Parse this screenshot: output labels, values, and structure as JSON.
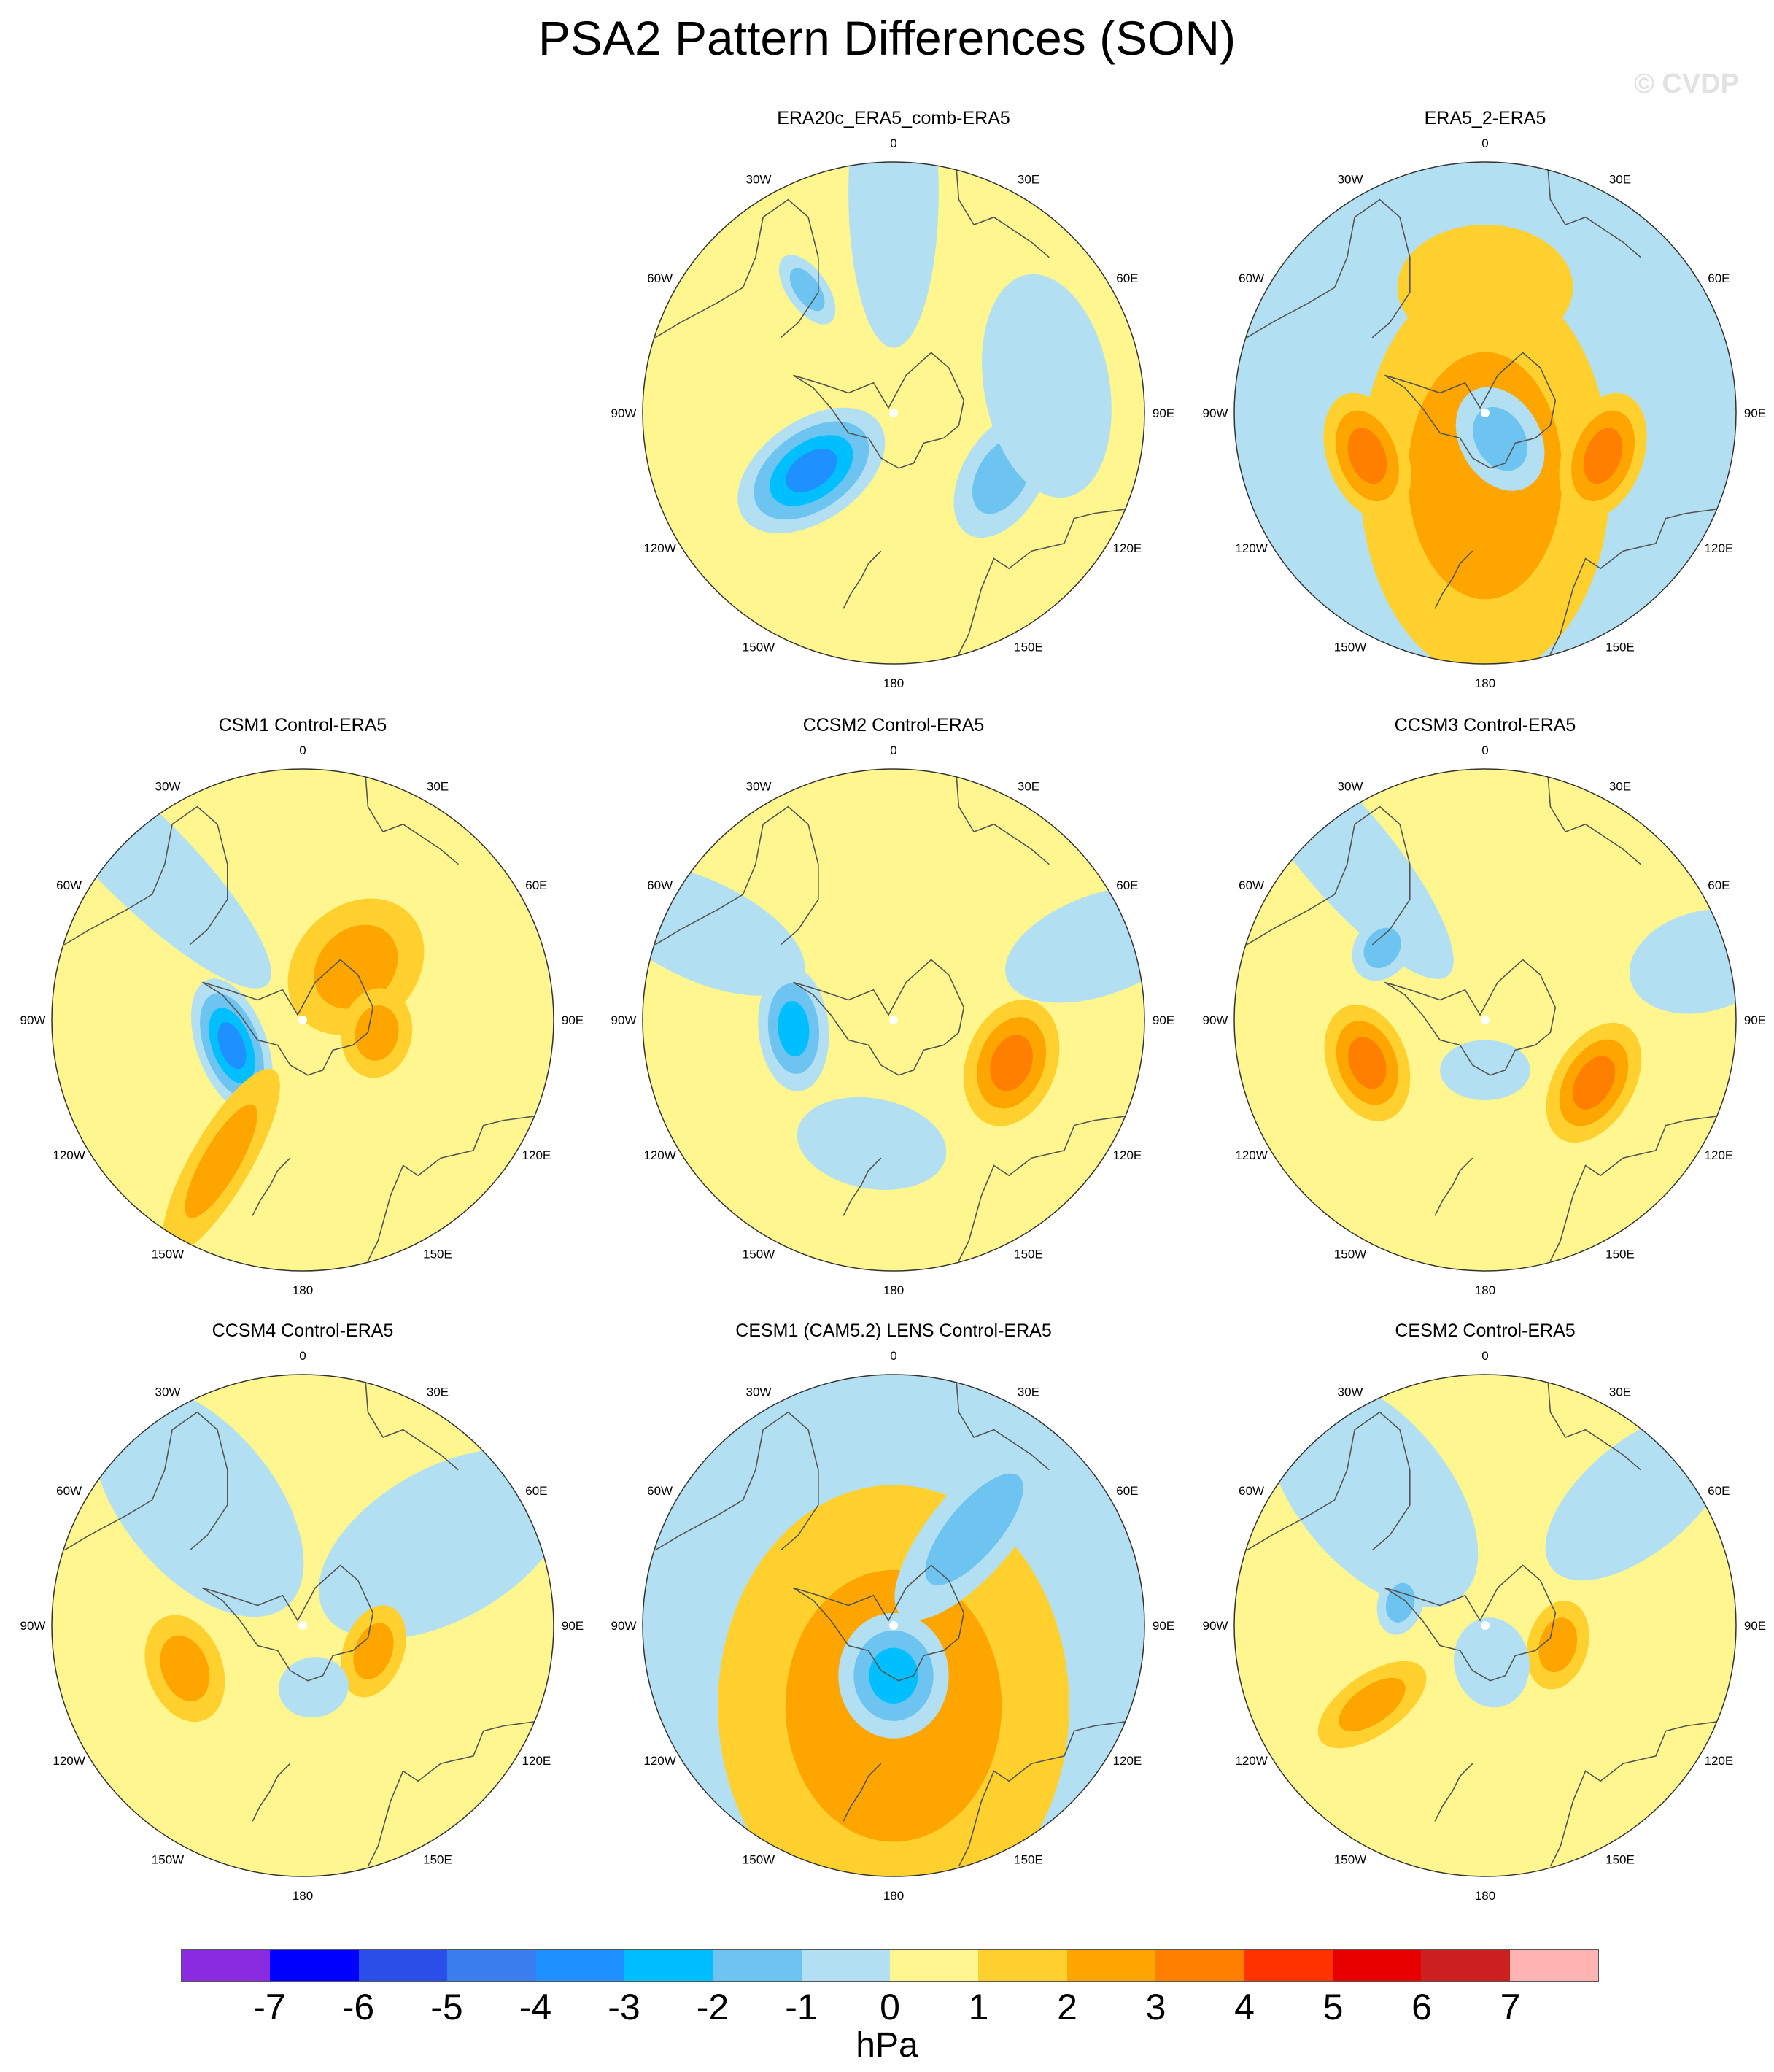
{
  "title": "PSA2 Pattern Differences (SON)",
  "watermark": "© CVDP",
  "lon_labels": [
    "0",
    "30E",
    "60E",
    "90E",
    "120E",
    "150E",
    "180",
    "150W",
    "120W",
    "90W",
    "60W",
    "30W"
  ],
  "panels": [
    {
      "title": "ERA20c_ERA5_comb-ERA5",
      "background_level": 0,
      "anomalies": [
        {
          "lon": -125,
          "r": 0.4,
          "level": -4,
          "sx": 0.33,
          "sy": 0.2
        },
        {
          "lon": 120,
          "r": 0.5,
          "level": -2,
          "sx": 0.16,
          "sy": 0.27
        },
        {
          "lon": -35,
          "r": 0.6,
          "level": -2,
          "sx": 0.16,
          "sy": 0.08
        },
        {
          "lon": 0,
          "r": 0.88,
          "level": -1,
          "sx": 0.62,
          "sy": 0.18
        },
        {
          "lon": 80,
          "r": 0.62,
          "level": -1,
          "sx": 0.25,
          "sy": 0.45
        }
      ]
    },
    {
      "title": "ERA5_2-ERA5",
      "background_level": -1,
      "anomalies": [
        {
          "lon": 180,
          "r": 0.25,
          "level": 2,
          "sx": 0.8,
          "sy": 0.5
        },
        {
          "lon": 0,
          "r": 0.5,
          "level": 1,
          "sx": 0.25,
          "sy": 0.35
        },
        {
          "lon": -110,
          "r": 0.5,
          "level": 3,
          "sx": 0.16,
          "sy": 0.26
        },
        {
          "lon": 110,
          "r": 0.5,
          "level": 3,
          "sx": 0.16,
          "sy": 0.26
        },
        {
          "lon": 150,
          "r": 0.12,
          "level": -2,
          "sx": 0.22,
          "sy": 0.16
        }
      ]
    },
    {
      "title": "CSM1 Control-ERA5",
      "background_level": 0,
      "anomalies": [
        {
          "lon": -45,
          "r": 0.92,
          "level": -1,
          "sx": 0.72,
          "sy": 0.18
        },
        {
          "lon": -110,
          "r": 0.3,
          "level": -4,
          "sx": 0.14,
          "sy": 0.28
        },
        {
          "lon": -150,
          "r": 0.65,
          "level": 2,
          "sx": 0.42,
          "sy": 0.12
        },
        {
          "lon": 45,
          "r": 0.3,
          "level": 2,
          "sx": 0.3,
          "sy": 0.24
        },
        {
          "lon": 100,
          "r": 0.3,
          "level": 2,
          "sx": 0.14,
          "sy": 0.18
        }
      ]
    },
    {
      "title": "CCSM2 Control-ERA5",
      "background_level": 0,
      "anomalies": [
        {
          "lon": -65,
          "r": 0.85,
          "level": -1,
          "sx": 0.45,
          "sy": 0.2
        },
        {
          "lon": 70,
          "r": 0.88,
          "level": -1,
          "sx": 0.4,
          "sy": 0.2
        },
        {
          "lon": -95,
          "r": 0.4,
          "level": -3,
          "sx": 0.14,
          "sy": 0.25
        },
        {
          "lon": -170,
          "r": 0.5,
          "level": -1,
          "sx": 0.18,
          "sy": 0.3
        },
        {
          "lon": 110,
          "r": 0.5,
          "level": 3,
          "sx": 0.18,
          "sy": 0.26
        }
      ]
    },
    {
      "title": "CCSM3 Control-ERA5",
      "background_level": 0,
      "anomalies": [
        {
          "lon": -40,
          "r": 0.88,
          "level": -1,
          "sx": 0.65,
          "sy": 0.18
        },
        {
          "lon": -55,
          "r": 0.5,
          "level": -2,
          "sx": 0.11,
          "sy": 0.14
        },
        {
          "lon": 75,
          "r": 0.9,
          "level": -1,
          "sx": 0.3,
          "sy": 0.2
        },
        {
          "lon": -110,
          "r": 0.5,
          "level": 3,
          "sx": 0.16,
          "sy": 0.24
        },
        {
          "lon": 120,
          "r": 0.5,
          "level": 3,
          "sx": 0.16,
          "sy": 0.26
        },
        {
          "lon": 180,
          "r": 0.2,
          "level": -1,
          "sx": 0.12,
          "sy": 0.18
        }
      ]
    },
    {
      "title": "CCSM4 Control-ERA5",
      "background_level": 0,
      "anomalies": [
        {
          "lon": -40,
          "r": 0.65,
          "level": -1,
          "sx": 0.55,
          "sy": 0.3
        },
        {
          "lon": 60,
          "r": 0.65,
          "level": -1,
          "sx": 0.55,
          "sy": 0.3
        },
        {
          "lon": -110,
          "r": 0.5,
          "level": 2,
          "sx": 0.15,
          "sy": 0.22
        },
        {
          "lon": 110,
          "r": 0.3,
          "level": 2,
          "sx": 0.12,
          "sy": 0.19
        },
        {
          "lon": 170,
          "r": 0.25,
          "level": -1,
          "sx": 0.12,
          "sy": 0.14
        }
      ]
    },
    {
      "title": "CESM1 (CAM5.2) LENS Control-ERA5",
      "background_level": -1,
      "anomalies": [
        {
          "lon": 180,
          "r": 0.32,
          "level": 3,
          "sx": 0.8,
          "sy": 0.62
        },
        {
          "lon": 180,
          "r": 0.32,
          "level": 2,
          "sx": 0.88,
          "sy": 0.7
        },
        {
          "lon": 180,
          "r": 0.2,
          "level": -3,
          "sx": 0.25,
          "sy": 0.22
        },
        {
          "lon": 40,
          "r": 0.5,
          "level": -2,
          "sx": 0.45,
          "sy": 0.17
        }
      ]
    },
    {
      "title": "CESM2 Control-ERA5",
      "background_level": 0,
      "anomalies": [
        {
          "lon": -40,
          "r": 0.7,
          "level": -1,
          "sx": 0.55,
          "sy": 0.3
        },
        {
          "lon": 50,
          "r": 0.8,
          "level": -1,
          "sx": 0.45,
          "sy": 0.22
        },
        {
          "lon": -75,
          "r": 0.35,
          "level": -2,
          "sx": 0.09,
          "sy": 0.13
        },
        {
          "lon": -125,
          "r": 0.55,
          "level": 2,
          "sx": 0.25,
          "sy": 0.12
        },
        {
          "lon": 105,
          "r": 0.3,
          "level": 2,
          "sx": 0.12,
          "sy": 0.18
        },
        {
          "lon": 170,
          "r": 0.15,
          "level": -1,
          "sx": 0.18,
          "sy": 0.15
        }
      ]
    }
  ],
  "colorbar": {
    "colors": [
      "#8a2be2",
      "#0000ff",
      "#2b4de8",
      "#3a7ff0",
      "#1e90ff",
      "#00bfff",
      "#6ec4f0",
      "#b3dff2",
      "#fff68f",
      "#ffd02e",
      "#ffa500",
      "#ff7f00",
      "#ff3300",
      "#e60000",
      "#cc1f1f",
      "#ffb3b3"
    ],
    "labels": [
      "-7",
      "-6",
      "-5",
      "-4",
      "-3",
      "-2",
      "-1",
      "0",
      "1",
      "2",
      "3",
      "4",
      "5",
      "6",
      "7"
    ],
    "units": "hPa"
  }
}
